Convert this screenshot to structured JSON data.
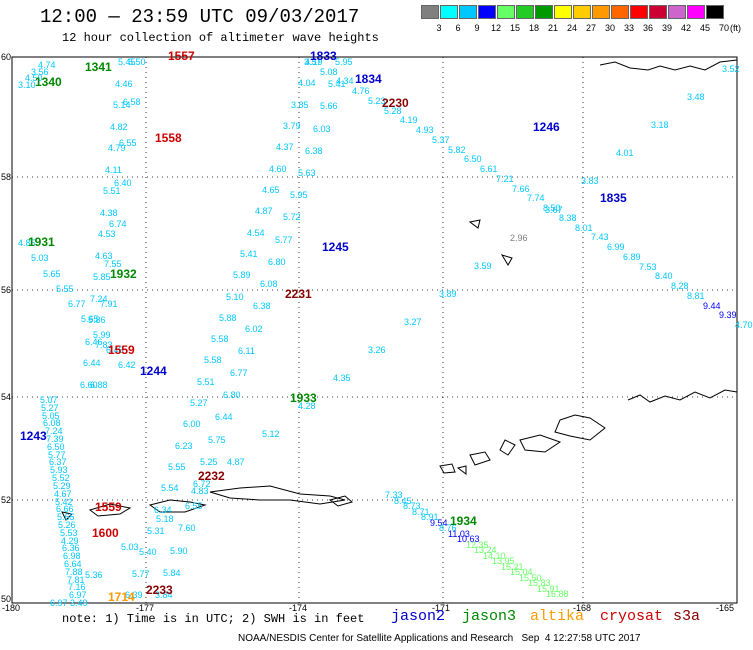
{
  "title": "12:00 — 23:59 UTC 09/03/2017",
  "subtitle": "12 hour collection of altimeter wave heights",
  "scale": {
    "labels": [
      "3",
      "6",
      "9",
      "12",
      "15",
      "18",
      "21",
      "24",
      "27",
      "30",
      "33",
      "36",
      "39",
      "42",
      "45",
      "70"
    ],
    "unit": "(ft)",
    "colors": [
      "#808080",
      "#00ffff",
      "#00c8ff",
      "#0000ff",
      "#66ff66",
      "#22cc22",
      "#009900",
      "#ffff00",
      "#ffcc00",
      "#ff9900",
      "#ff6600",
      "#ff0000",
      "#cc0033",
      "#cc66cc",
      "#ff00ff",
      "#000000"
    ]
  },
  "axes": {
    "lat_labels": [
      "60",
      "58",
      "56",
      "54",
      "52",
      "50"
    ],
    "lon_labels": [
      "-180",
      "-177",
      "-174",
      "-171",
      "-168",
      "-165"
    ]
  },
  "note": "note: 1) Time is in UTC; 2) SWH is in feet",
  "satellites": [
    {
      "name": "jason2",
      "color": "#0000cc"
    },
    {
      "name": "jason3",
      "color": "#008800"
    },
    {
      "name": "altika",
      "color": "#ff9900"
    },
    {
      "name": "cryosat",
      "color": "#cc0000"
    },
    {
      "name": "s3a",
      "color": "#880000"
    }
  ],
  "footer": "NOAA/NESDIS Center for Satellite Applications and Research   Sep  4 12:27:58 UTC 2017",
  "time_labels": [
    {
      "t": "1557",
      "c": "#cc0000"
    },
    {
      "t": "1558",
      "c": "#cc0000"
    },
    {
      "t": "1559",
      "c": "#cc0000"
    },
    {
      "t": "1559",
      "c": "#cc0000"
    },
    {
      "t": "1600",
      "c": "#cc0000"
    },
    {
      "t": "1833",
      "c": "#0000cc"
    },
    {
      "t": "1834",
      "c": "#0000cc"
    },
    {
      "t": "1246",
      "c": "#0000cc"
    },
    {
      "t": "1835",
      "c": "#0000cc"
    },
    {
      "t": "1245",
      "c": "#0000cc"
    },
    {
      "t": "1244",
      "c": "#0000cc"
    },
    {
      "t": "1243",
      "c": "#0000cc"
    },
    {
      "t": "1341",
      "c": "#008800"
    },
    {
      "t": "1340",
      "c": "#008800"
    },
    {
      "t": "1931",
      "c": "#008800"
    },
    {
      "t": "1932",
      "c": "#008800"
    },
    {
      "t": "1933",
      "c": "#008800"
    },
    {
      "t": "1934",
      "c": "#008800"
    },
    {
      "t": "2230",
      "c": "#880000"
    },
    {
      "t": "2231",
      "c": "#880000"
    },
    {
      "t": "2232",
      "c": "#880000"
    },
    {
      "t": "2233",
      "c": "#880000"
    },
    {
      "t": "1714",
      "c": "#ff9900"
    }
  ],
  "wave_values": [
    {
      "v": "4.74",
      "c": "#00c8ff"
    },
    {
      "v": "3.56",
      "c": "#00c8ff"
    },
    {
      "v": "4.50",
      "c": "#00c8ff"
    },
    {
      "v": "3.10",
      "c": "#00c8ff"
    },
    {
      "v": "5.45",
      "c": "#00c8ff"
    },
    {
      "v": "4.46",
      "c": "#00c8ff"
    },
    {
      "v": "5.14",
      "c": "#00c8ff"
    },
    {
      "v": "4.82",
      "c": "#00c8ff"
    },
    {
      "v": "4.79",
      "c": "#00c8ff"
    },
    {
      "v": "4.11",
      "c": "#00c8ff"
    },
    {
      "v": "5.51",
      "c": "#00c8ff"
    },
    {
      "v": "4.38",
      "c": "#00c8ff"
    },
    {
      "v": "4.53",
      "c": "#00c8ff"
    },
    {
      "v": "4.63",
      "c": "#00c8ff"
    },
    {
      "v": "5.85",
      "c": "#00c8ff"
    },
    {
      "v": "7.24",
      "c": "#00c8ff"
    },
    {
      "v": "5.86",
      "c": "#00c8ff"
    },
    {
      "v": "6.46",
      "c": "#00c8ff"
    },
    {
      "v": "6.44",
      "c": "#00c8ff"
    },
    {
      "v": "6.60",
      "c": "#00c8ff"
    },
    {
      "v": "6.50",
      "c": "#00c8ff"
    },
    {
      "v": "6.58",
      "c": "#00c8ff"
    },
    {
      "v": "6.55",
      "c": "#00c8ff"
    },
    {
      "v": "6.40",
      "c": "#00c8ff"
    },
    {
      "v": "6.74",
      "c": "#00c8ff"
    },
    {
      "v": "7.55",
      "c": "#00c8ff"
    },
    {
      "v": "7.91",
      "c": "#00c8ff"
    },
    {
      "v": "7.83",
      "c": "#00c8ff"
    },
    {
      "v": "6.88",
      "c": "#00c8ff"
    },
    {
      "v": "4.85",
      "c": "#00c8ff"
    },
    {
      "v": "5.03",
      "c": "#00c8ff"
    },
    {
      "v": "5.65",
      "c": "#00c8ff"
    },
    {
      "v": "5.55",
      "c": "#00c8ff"
    },
    {
      "v": "6.77",
      "c": "#00c8ff"
    },
    {
      "v": "5.65",
      "c": "#00c8ff"
    },
    {
      "v": "5.99",
      "c": "#00c8ff"
    },
    {
      "v": "6.43",
      "c": "#00c8ff"
    },
    {
      "v": "6.42",
      "c": "#00c8ff"
    },
    {
      "v": "5.07",
      "c": "#00c8ff"
    },
    {
      "v": "5.27",
      "c": "#00c8ff"
    },
    {
      "v": "5.05",
      "c": "#00c8ff"
    },
    {
      "v": "6.08",
      "c": "#00c8ff"
    },
    {
      "v": "7.24",
      "c": "#00c8ff"
    },
    {
      "v": "7.39",
      "c": "#00c8ff"
    },
    {
      "v": "6.50",
      "c": "#00c8ff"
    },
    {
      "v": "5.77",
      "c": "#00c8ff"
    },
    {
      "v": "6.37",
      "c": "#00c8ff"
    },
    {
      "v": "5.93",
      "c": "#00c8ff"
    },
    {
      "v": "5.52",
      "c": "#00c8ff"
    },
    {
      "v": "5.29",
      "c": "#00c8ff"
    },
    {
      "v": "4.67",
      "c": "#00c8ff"
    },
    {
      "v": "5.42",
      "c": "#00c8ff"
    },
    {
      "v": "6.66",
      "c": "#00c8ff"
    },
    {
      "v": "5.65",
      "c": "#00c8ff"
    },
    {
      "v": "5.26",
      "c": "#00c8ff"
    },
    {
      "v": "5.53",
      "c": "#00c8ff"
    },
    {
      "v": "4.29",
      "c": "#00c8ff"
    },
    {
      "v": "6.36",
      "c": "#00c8ff"
    },
    {
      "v": "6.98",
      "c": "#00c8ff"
    },
    {
      "v": "6.64",
      "c": "#00c8ff"
    },
    {
      "v": "7.88",
      "c": "#00c8ff"
    },
    {
      "v": "7.81",
      "c": "#00c8ff"
    },
    {
      "v": "7.16",
      "c": "#00c8ff"
    },
    {
      "v": "6.97",
      "c": "#00c8ff"
    },
    {
      "v": "3.49",
      "c": "#00c8ff"
    },
    {
      "v": "4.19",
      "c": "#00c8ff"
    },
    {
      "v": "4.04",
      "c": "#00c8ff"
    },
    {
      "v": "3.85",
      "c": "#00c8ff"
    },
    {
      "v": "3.79",
      "c": "#00c8ff"
    },
    {
      "v": "4.37",
      "c": "#00c8ff"
    },
    {
      "v": "4.60",
      "c": "#00c8ff"
    },
    {
      "v": "4.65",
      "c": "#00c8ff"
    },
    {
      "v": "4.87",
      "c": "#00c8ff"
    },
    {
      "v": "4.54",
      "c": "#00c8ff"
    },
    {
      "v": "5.41",
      "c": "#00c8ff"
    },
    {
      "v": "5.89",
      "c": "#00c8ff"
    },
    {
      "v": "5.10",
      "c": "#00c8ff"
    },
    {
      "v": "5.88",
      "c": "#00c8ff"
    },
    {
      "v": "5.58",
      "c": "#00c8ff"
    },
    {
      "v": "5.58",
      "c": "#00c8ff"
    },
    {
      "v": "5.51",
      "c": "#00c8ff"
    },
    {
      "v": "5.27",
      "c": "#00c8ff"
    },
    {
      "v": "6.00",
      "c": "#00c8ff"
    },
    {
      "v": "6.23",
      "c": "#00c8ff"
    },
    {
      "v": "5.55",
      "c": "#00c8ff"
    },
    {
      "v": "5.54",
      "c": "#00c8ff"
    },
    {
      "v": "6.34",
      "c": "#00c8ff"
    },
    {
      "v": "5.31",
      "c": "#00c8ff"
    },
    {
      "v": "5.40",
      "c": "#00c8ff"
    },
    {
      "v": "5.77",
      "c": "#00c8ff"
    },
    {
      "v": "6.39",
      "c": "#00c8ff"
    },
    {
      "v": "5.95",
      "c": "#00c8ff"
    },
    {
      "v": "5.41",
      "c": "#00c8ff"
    },
    {
      "v": "5.66",
      "c": "#00c8ff"
    },
    {
      "v": "6.03",
      "c": "#00c8ff"
    },
    {
      "v": "6.38",
      "c": "#00c8ff"
    },
    {
      "v": "5.63",
      "c": "#00c8ff"
    },
    {
      "v": "5.95",
      "c": "#00c8ff"
    },
    {
      "v": "5.72",
      "c": "#00c8ff"
    },
    {
      "v": "5.77",
      "c": "#00c8ff"
    },
    {
      "v": "6.80",
      "c": "#00c8ff"
    },
    {
      "v": "6.08",
      "c": "#00c8ff"
    },
    {
      "v": "6.38",
      "c": "#00c8ff"
    },
    {
      "v": "6.02",
      "c": "#00c8ff"
    },
    {
      "v": "6.11",
      "c": "#00c8ff"
    },
    {
      "v": "6.77",
      "c": "#00c8ff"
    },
    {
      "v": "6.80",
      "c": "#00c8ff"
    },
    {
      "v": "6.44",
      "c": "#00c8ff"
    },
    {
      "v": "5.75",
      "c": "#00c8ff"
    },
    {
      "v": "5.25",
      "c": "#00c8ff"
    },
    {
      "v": "6.72",
      "c": "#00c8ff"
    },
    {
      "v": "6.55",
      "c": "#00c8ff"
    },
    {
      "v": "7.60",
      "c": "#00c8ff"
    },
    {
      "v": "5.90",
      "c": "#00c8ff"
    },
    {
      "v": "5.84",
      "c": "#00c8ff"
    },
    {
      "v": "3.84",
      "c": "#00c8ff"
    },
    {
      "v": "3.57",
      "c": "#00c8ff"
    },
    {
      "v": "5.08",
      "c": "#00c8ff"
    },
    {
      "v": "4.34",
      "c": "#00c8ff"
    },
    {
      "v": "4.76",
      "c": "#00c8ff"
    },
    {
      "v": "5.23",
      "c": "#00c8ff"
    },
    {
      "v": "5.28",
      "c": "#00c8ff"
    },
    {
      "v": "4.19",
      "c": "#00c8ff"
    },
    {
      "v": "4.93",
      "c": "#00c8ff"
    },
    {
      "v": "5.37",
      "c": "#00c8ff"
    },
    {
      "v": "5.82",
      "c": "#00c8ff"
    },
    {
      "v": "6.50",
      "c": "#00c8ff"
    },
    {
      "v": "6.61",
      "c": "#00c8ff"
    },
    {
      "v": "7.21",
      "c": "#00c8ff"
    },
    {
      "v": "7.66",
      "c": "#00c8ff"
    },
    {
      "v": "7.74",
      "c": "#00c8ff"
    },
    {
      "v": "8.50",
      "c": "#00c8ff"
    },
    {
      "v": "8.38",
      "c": "#00c8ff"
    },
    {
      "v": "8.01",
      "c": "#00c8ff"
    },
    {
      "v": "7.43",
      "c": "#00c8ff"
    },
    {
      "v": "6.99",
      "c": "#00c8ff"
    },
    {
      "v": "6.89",
      "c": "#00c8ff"
    },
    {
      "v": "7.53",
      "c": "#00c8ff"
    },
    {
      "v": "8.40",
      "c": "#00c8ff"
    },
    {
      "v": "8.28",
      "c": "#00c8ff"
    },
    {
      "v": "8.81",
      "c": "#00c8ff"
    },
    {
      "v": "9.44",
      "c": "#0000ff"
    },
    {
      "v": "9.39",
      "c": "#0000ff"
    },
    {
      "v": "4.70",
      "c": "#00c8ff"
    },
    {
      "v": "3.52",
      "c": "#00c8ff"
    },
    {
      "v": "3.48",
      "c": "#00c8ff"
    },
    {
      "v": "3.18",
      "c": "#00c8ff"
    },
    {
      "v": "4.01",
      "c": "#00c8ff"
    },
    {
      "v": "3.83",
      "c": "#00c8ff"
    },
    {
      "v": "3.67",
      "c": "#00c8ff"
    },
    {
      "v": "2.96",
      "c": "#808080"
    },
    {
      "v": "3.59",
      "c": "#00c8ff"
    },
    {
      "v": "3.89",
      "c": "#00c8ff"
    },
    {
      "v": "3.27",
      "c": "#00c8ff"
    },
    {
      "v": "3.26",
      "c": "#00c8ff"
    },
    {
      "v": "4.35",
      "c": "#00c8ff"
    },
    {
      "v": "4.28",
      "c": "#00c8ff"
    },
    {
      "v": "5.12",
      "c": "#00c8ff"
    },
    {
      "v": "4.87",
      "c": "#00c8ff"
    },
    {
      "v": "4.83",
      "c": "#00c8ff"
    },
    {
      "v": "5.18",
      "c": "#00c8ff"
    },
    {
      "v": "5.03",
      "c": "#00c8ff"
    },
    {
      "v": "5.36",
      "c": "#00c8ff"
    },
    {
      "v": "6.97",
      "c": "#00c8ff"
    },
    {
      "v": "7.33",
      "c": "#00c8ff"
    },
    {
      "v": "8.45",
      "c": "#00c8ff"
    },
    {
      "v": "8.73",
      "c": "#00c8ff"
    },
    {
      "v": "8.71",
      "c": "#00c8ff"
    },
    {
      "v": "8.91",
      "c": "#00c8ff"
    },
    {
      "v": "9.54",
      "c": "#0000ff"
    },
    {
      "v": "8.76",
      "c": "#00c8ff"
    },
    {
      "v": "11.03",
      "c": "#0000ff"
    },
    {
      "v": "10.63",
      "c": "#0000ff"
    },
    {
      "v": "12.35",
      "c": "#66ff66"
    },
    {
      "v": "13.24",
      "c": "#66ff66"
    },
    {
      "v": "14.10",
      "c": "#66ff66"
    },
    {
      "v": "13.95",
      "c": "#66ff66"
    },
    {
      "v": "15.21",
      "c": "#66ff66"
    },
    {
      "v": "15.04",
      "c": "#66ff66"
    },
    {
      "v": "15.50",
      "c": "#66ff66"
    },
    {
      "v": "15.83",
      "c": "#66ff66"
    },
    {
      "v": "15.91",
      "c": "#66ff66"
    },
    {
      "v": "16.88",
      "c": "#66ff66"
    }
  ]
}
